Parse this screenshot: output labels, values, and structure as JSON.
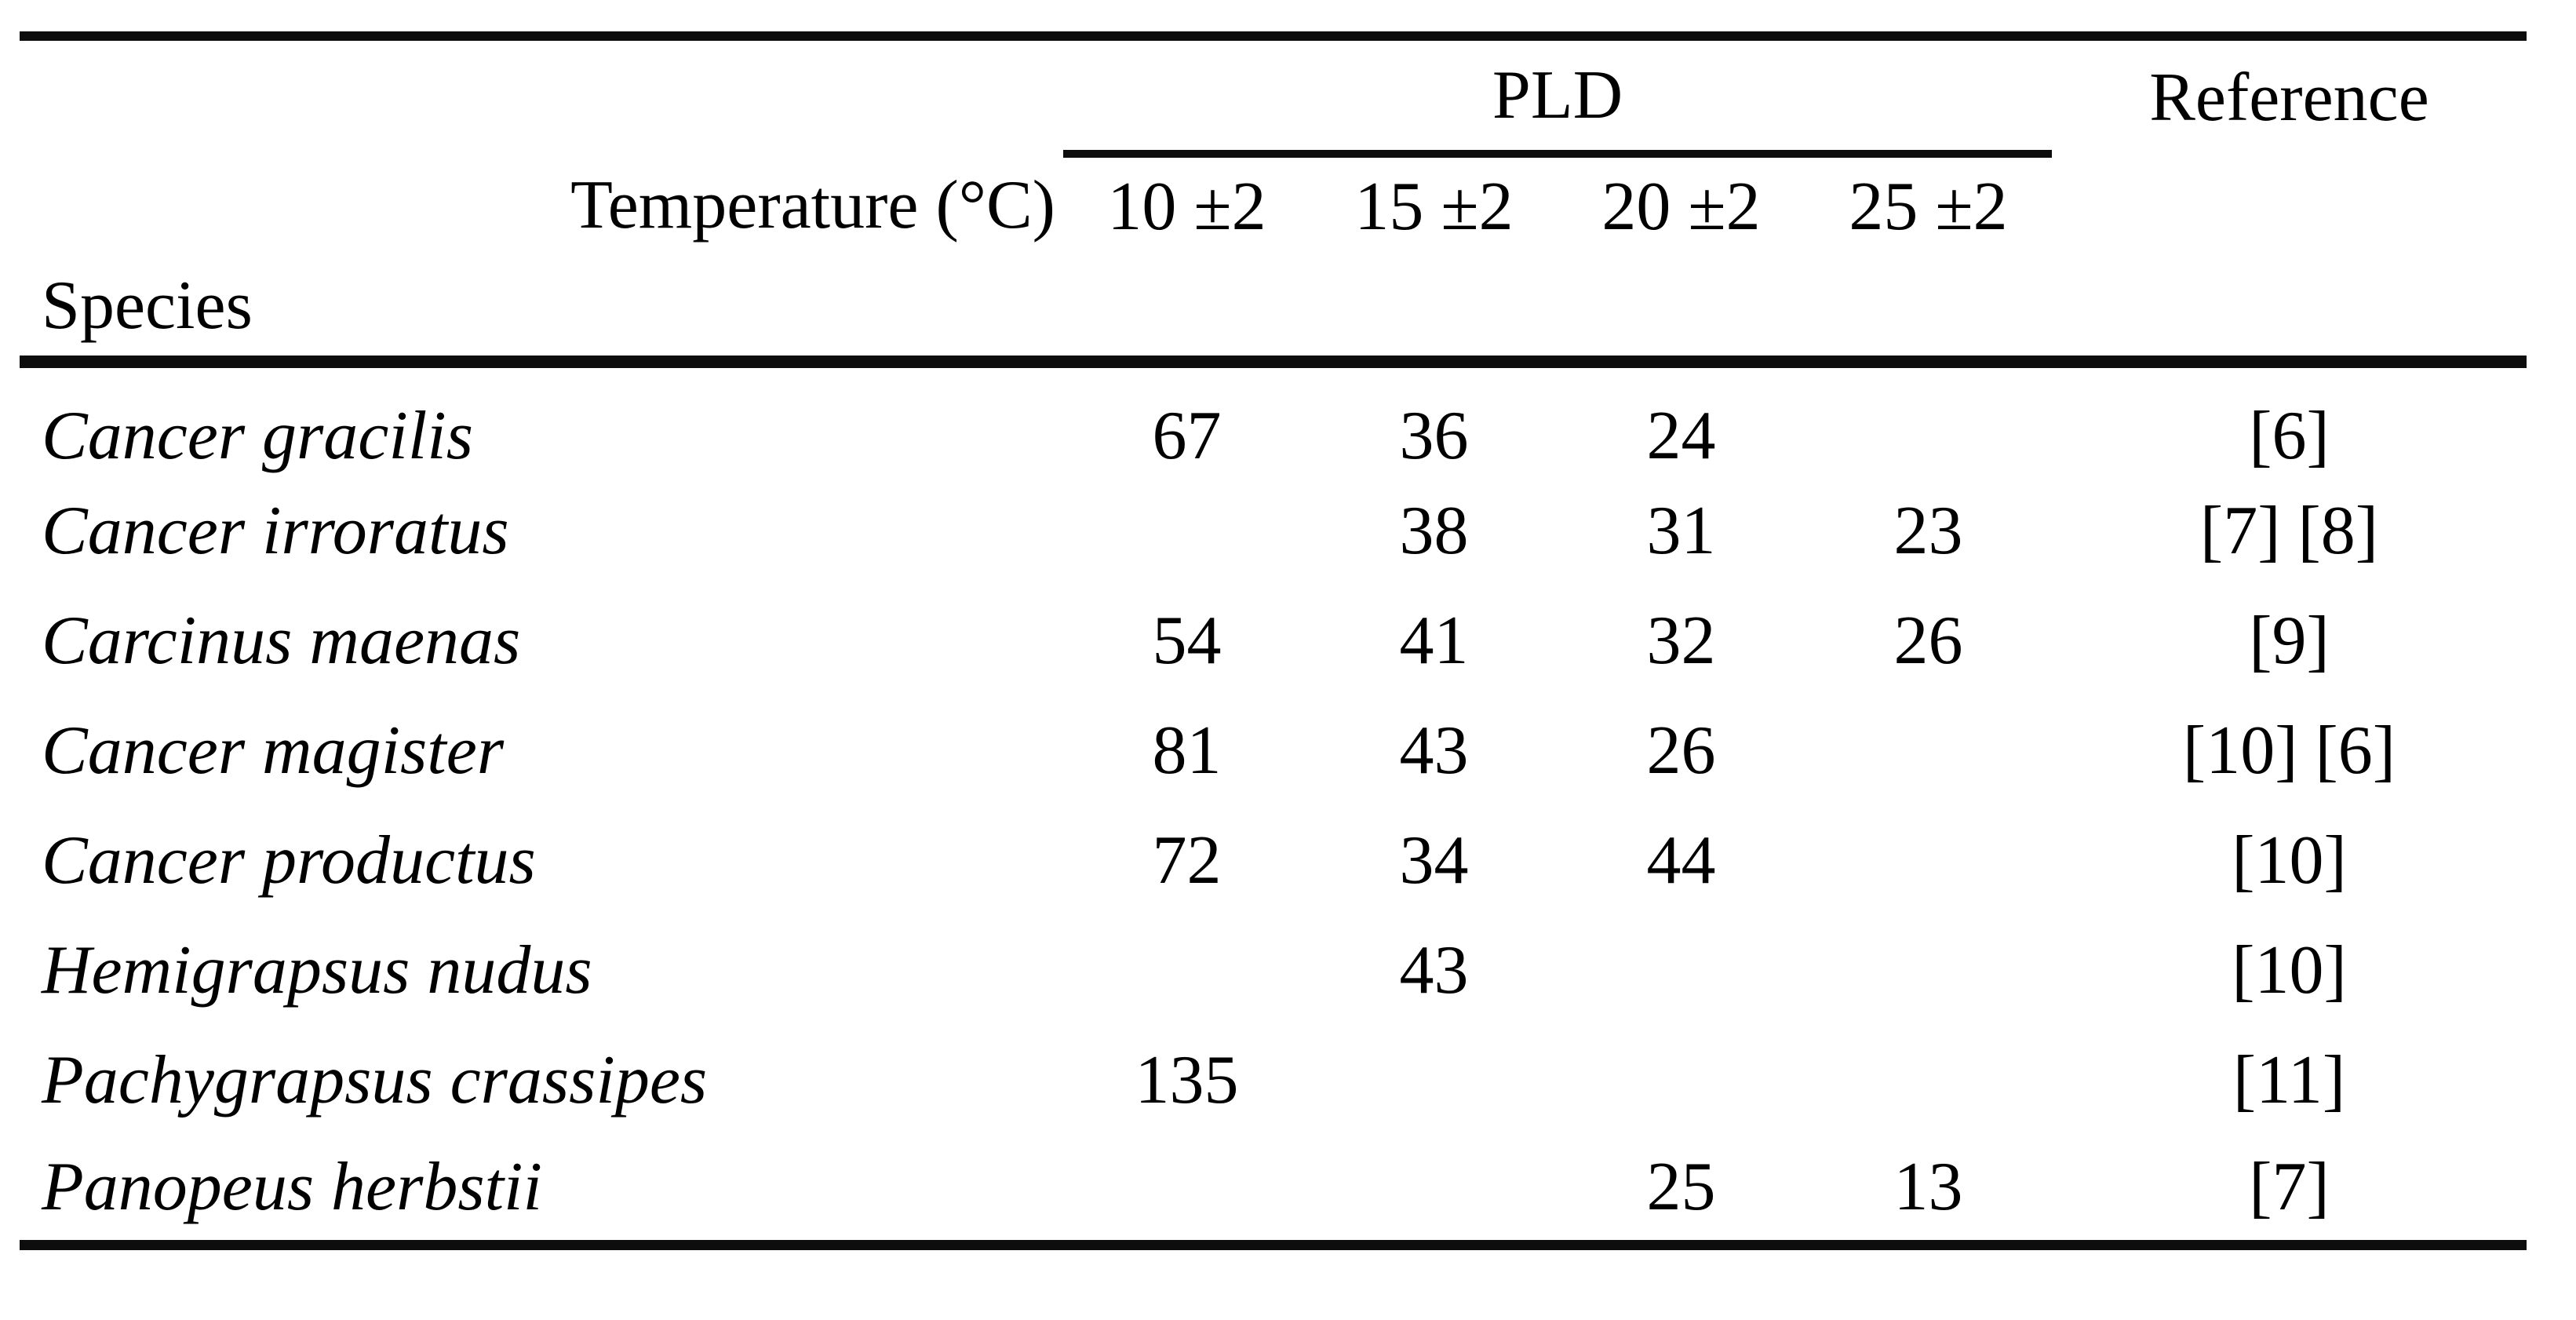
{
  "table": {
    "header": {
      "pld": "PLD",
      "reference": "Reference",
      "temperature": "Temperature (°C)",
      "species": "Species",
      "temps": [
        "10 ±2",
        "15 ±2",
        "20 ±2",
        "25 ±2"
      ]
    },
    "rows": [
      {
        "species": "Cancer gracilis",
        "t10": "67",
        "t15": "36",
        "t20": "24",
        "t25": "",
        "reference": "[6]"
      },
      {
        "species": "Cancer irroratus",
        "t10": "",
        "t15": "38",
        "t20": "31",
        "t25": "23",
        "reference": "[7] [8]"
      },
      {
        "species": "Carcinus maenas",
        "t10": "54",
        "t15": "41",
        "t20": "32",
        "t25": "26",
        "reference": "[9]"
      },
      {
        "species": "Cancer magister",
        "t10": "81",
        "t15": "43",
        "t20": "26",
        "t25": "",
        "reference": "[10] [6]"
      },
      {
        "species": "Cancer productus",
        "t10": "72",
        "t15": "34",
        "t20": "44",
        "t25": "",
        "reference": "[10]"
      },
      {
        "species": "Hemigrapsus nudus",
        "t10": "",
        "t15": "43",
        "t20": "",
        "t25": "",
        "reference": "[10]"
      },
      {
        "species": "Pachygrapsus crassipes",
        "t10": "135",
        "t15": "",
        "t20": "",
        "t25": "",
        "reference": "[11]"
      },
      {
        "species": "Panopeus herbstii",
        "t10": "",
        "t15": "",
        "t20": "25",
        "t25": "13",
        "reference": "[7]"
      }
    ],
    "colors": {
      "text": "#000000",
      "rule": "#0d0d0d",
      "background": "#ffffff"
    }
  },
  "chart_data": {
    "type": "table",
    "title": "",
    "columns": [
      "Species",
      "PLD 10 ±2",
      "PLD 15 ±2",
      "PLD 20 ±2",
      "PLD 25 ±2",
      "Reference"
    ],
    "rows": [
      [
        "Cancer gracilis",
        "67",
        "36",
        "24",
        "",
        "[6]"
      ],
      [
        "Cancer irroratus",
        "",
        "38",
        "31",
        "23",
        "[7] [8]"
      ],
      [
        "Carcinus maenas",
        "54",
        "41",
        "32",
        "26",
        "[9]"
      ],
      [
        "Cancer magister",
        "81",
        "43",
        "26",
        "",
        "[10] [6]"
      ],
      [
        "Cancer productus",
        "72",
        "34",
        "44",
        "",
        "[10]"
      ],
      [
        "Hemigrapsus nudus",
        "",
        "43",
        "",
        "",
        "[10]"
      ],
      [
        "Pachygrapsus crassipes",
        "135",
        "",
        "",
        "",
        "[11]"
      ],
      [
        "Panopeus herbstii",
        "",
        "",
        "25",
        "13",
        "[7]"
      ]
    ]
  }
}
